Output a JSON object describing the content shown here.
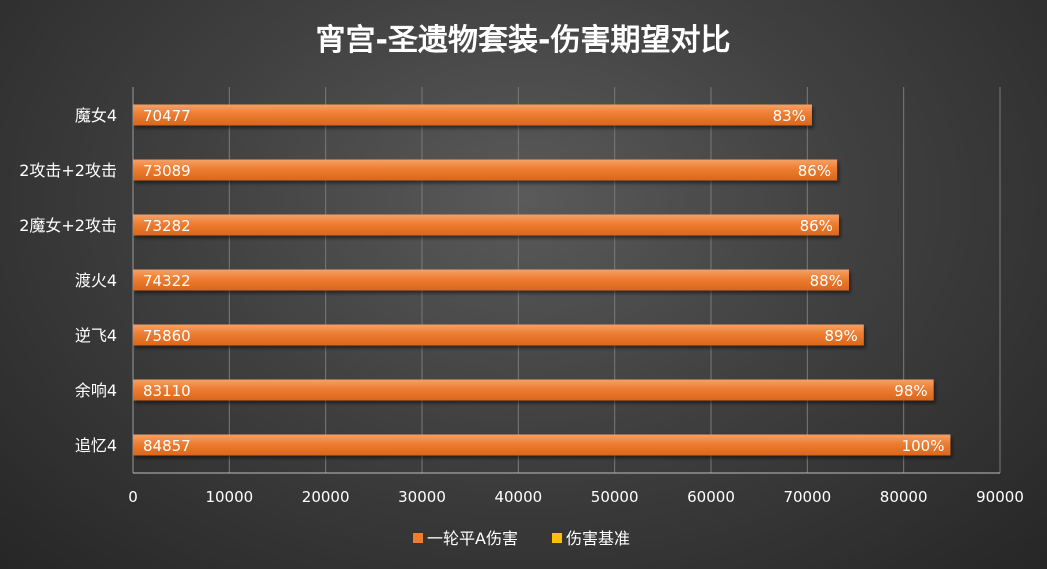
{
  "chart_data": {
    "type": "bar",
    "orientation": "horizontal",
    "title": "宵宫-圣遗物套装-伤害期望对比",
    "categories": [
      "魔女4",
      "2攻击+2攻击",
      "2魔女+2攻击",
      "渡火4",
      "逆飞4",
      "余响4",
      "追忆4"
    ],
    "series": [
      {
        "name": "一轮平A伤害",
        "color": "#ED7D31",
        "values": [
          70477,
          73089,
          73282,
          74322,
          75860,
          83110,
          84857
        ],
        "value_labels": [
          "70477",
          "73089",
          "73282",
          "74322",
          "75860",
          "83110",
          "84857"
        ],
        "percent_labels": [
          "83%",
          "86%",
          "86%",
          "88%",
          "89%",
          "98%",
          "100%"
        ]
      },
      {
        "name": "伤害基准",
        "color": "#FFC000",
        "values": [
          0,
          0,
          0,
          0,
          0,
          0,
          0
        ]
      }
    ],
    "x_ticks": [
      "0",
      "10000",
      "20000",
      "30000",
      "40000",
      "50000",
      "60000",
      "70000",
      "80000",
      "90000"
    ],
    "xlim": [
      0,
      90000
    ],
    "grid": true,
    "legend_position": "bottom",
    "xlabel": "",
    "ylabel": ""
  }
}
